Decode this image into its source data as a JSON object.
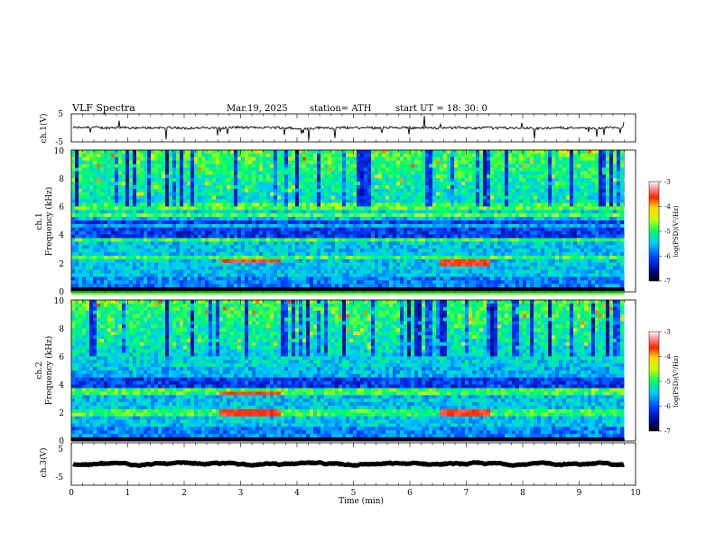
{
  "header": {
    "title": "VLF  Spectra",
    "date": "Mar.19, 2025",
    "station": "station= ATH",
    "start_ut": "start  UT  =   18: 30: 0"
  },
  "chart_data": [
    {
      "type": "line",
      "name": "ch1-waveform",
      "ylabel": "ch.1(V)",
      "ylim": [
        -5,
        5
      ],
      "yticks": [
        "5",
        "-5"
      ],
      "xlim": [
        0,
        10
      ],
      "mean": 0.0,
      "amplitude": 0.8
    },
    {
      "type": "heatmap",
      "name": "ch1-spectrogram",
      "ylabel": "ch.1\nFrequency  (kHz)",
      "ylim": [
        0,
        10
      ],
      "yticks": [
        "0",
        "2",
        "4",
        "6",
        "8",
        "10"
      ],
      "xlim": [
        0,
        9.8
      ],
      "colorbar": {
        "label": "log(PSD)(V²/Hz)",
        "range": [
          -7,
          -3
        ],
        "ticks": [
          "-3",
          "-4",
          "-5",
          "-6",
          "-7"
        ]
      },
      "emission_bands_khz": [
        2.4,
        3.6,
        4.6,
        5.3,
        6.0
      ],
      "strong_segments": [
        {
          "t0": 2.6,
          "t1": 3.7,
          "f": 2.2
        },
        {
          "t0": 6.5,
          "t1": 7.4,
          "f": 2.1
        }
      ]
    },
    {
      "type": "heatmap",
      "name": "ch2-spectrogram",
      "ylabel": "ch.2\nFrequency  (kHz)",
      "ylim": [
        0,
        10
      ],
      "yticks": [
        "0",
        "2",
        "4",
        "6",
        "8",
        "10"
      ],
      "xlim": [
        0,
        9.8
      ],
      "colorbar": {
        "label": "log(PSD)(V²/Hz)",
        "range": [
          -7,
          -3
        ],
        "ticks": [
          "-3",
          "-4",
          "-5",
          "-6",
          "-7"
        ]
      },
      "emission_bands_khz": [
        2.0,
        3.5,
        4.6,
        5.0
      ],
      "strong_segments": [
        {
          "t0": 2.6,
          "t1": 3.7,
          "f": 2.0
        },
        {
          "t0": 6.5,
          "t1": 7.4,
          "f": 2.0
        },
        {
          "t0": 2.6,
          "t1": 3.7,
          "f": 3.4
        }
      ]
    },
    {
      "type": "line",
      "name": "ch3-waveform",
      "ylabel": "ch.3(V)",
      "ylim": [
        -5,
        5
      ],
      "yticks": [
        "5",
        "-5"
      ],
      "xlim": [
        0,
        10
      ],
      "mean": 0.0,
      "amplitude": 0.05
    }
  ],
  "xaxis": {
    "label": "Time  (min)",
    "ticks": [
      "0",
      "1",
      "2",
      "3",
      "4",
      "5",
      "6",
      "7",
      "8",
      "9",
      "10"
    ],
    "range": [
      0,
      10
    ]
  },
  "colors": {
    "line": "#000000",
    "axis": "#000000"
  }
}
